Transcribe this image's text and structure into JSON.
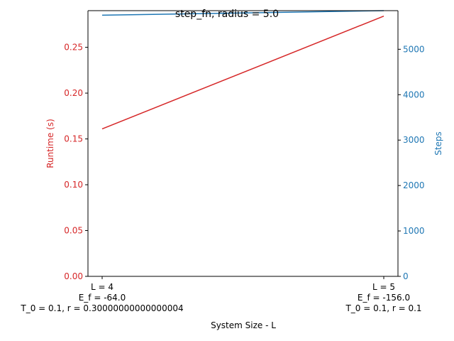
{
  "chart_data": {
    "type": "line",
    "title": "step_fn, radius = 5.0",
    "xlabel": "System Size - L",
    "ylabel_left": "Runtime (s)",
    "ylabel_right": "Steps",
    "x_categories": [
      [
        "L = 4",
        "E_f = -64.0",
        "T_0 = 0.1, r = 0.30000000000000004"
      ],
      [
        "L = 5",
        "E_f = -156.0",
        "T_0 = 0.1, r = 0.1"
      ]
    ],
    "ylim_left": [
      0,
      0.29
    ],
    "yticks_left": [
      0.0,
      0.05,
      0.1,
      0.15,
      0.2,
      0.25
    ],
    "ytick_labels_left": [
      "0.00",
      "0.05",
      "0.10",
      "0.15",
      "0.20",
      "0.25"
    ],
    "ylim_right": [
      0,
      5850
    ],
    "yticks_right": [
      0,
      1000,
      2000,
      3000,
      4000,
      5000
    ],
    "ytick_labels_right": [
      "0",
      "1000",
      "2000",
      "3000",
      "4000",
      "5000"
    ],
    "grid": false,
    "colors": {
      "runtime": "#d62728",
      "steps": "#1f77b4",
      "axis": "#000000"
    },
    "series": [
      {
        "axis": "left",
        "color": "#d62728",
        "values": [
          0.161,
          0.284
        ]
      },
      {
        "axis": "right",
        "color": "#1f77b4",
        "values": [
          5750,
          5850
        ]
      }
    ]
  }
}
